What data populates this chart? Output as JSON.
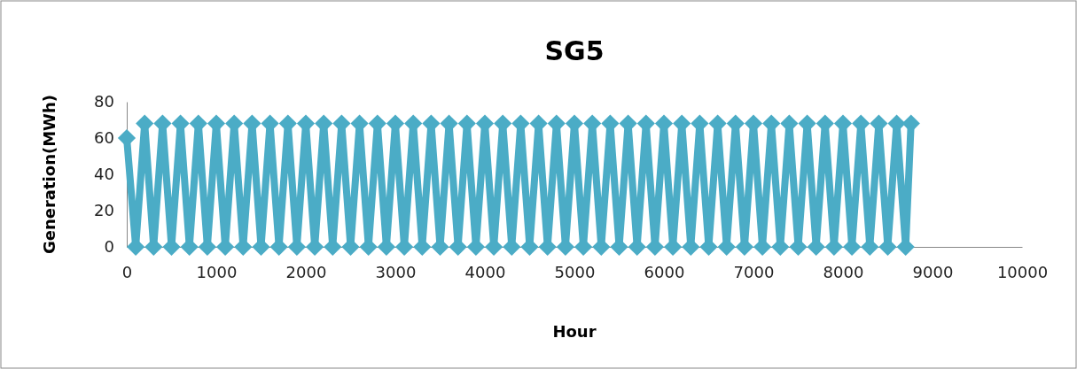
{
  "chart_data": {
    "type": "line",
    "title": "SG5",
    "xlabel": "Hour",
    "ylabel": "Generation(MWh)",
    "xlim": [
      0,
      10000
    ],
    "xticks": [
      0,
      1000,
      2000,
      3000,
      4000,
      5000,
      6000,
      7000,
      8000,
      9000,
      10000
    ],
    "ylim": [
      0,
      80
    ],
    "yticks": [
      0,
      20,
      40,
      60,
      80
    ],
    "grid": false,
    "marker": "diamond",
    "line_style": "solid",
    "series": [
      {
        "color": "#4bacc6",
        "x": [
          0,
          100,
          200,
          300,
          400,
          500,
          600,
          700,
          800,
          900,
          1000,
          1100,
          1200,
          1300,
          1400,
          1500,
          1600,
          1700,
          1800,
          1900,
          2000,
          2100,
          2200,
          2300,
          2400,
          2500,
          2600,
          2700,
          2800,
          2900,
          3000,
          3100,
          3200,
          3300,
          3400,
          3500,
          3600,
          3700,
          3800,
          3900,
          4000,
          4100,
          4200,
          4300,
          4400,
          4500,
          4600,
          4700,
          4800,
          4900,
          5000,
          5100,
          5200,
          5300,
          5400,
          5500,
          5600,
          5700,
          5800,
          5900,
          6000,
          6100,
          6200,
          6300,
          6400,
          6500,
          6600,
          6700,
          6800,
          6900,
          7000,
          7100,
          7200,
          7300,
          7400,
          7500,
          7600,
          7700,
          7800,
          7900,
          8000,
          8100,
          8200,
          8300,
          8400,
          8500,
          8600,
          8700,
          8760
        ],
        "values": [
          60,
          0,
          68,
          0,
          68,
          0,
          68,
          0,
          68,
          0,
          68,
          0,
          68,
          0,
          68,
          0,
          68,
          0,
          68,
          0,
          68,
          0,
          68,
          0,
          68,
          0,
          68,
          0,
          68,
          0,
          68,
          0,
          68,
          0,
          68,
          0,
          68,
          0,
          68,
          0,
          68,
          0,
          68,
          0,
          68,
          0,
          68,
          0,
          68,
          0,
          68,
          0,
          68,
          0,
          68,
          0,
          68,
          0,
          68,
          0,
          68,
          0,
          68,
          0,
          68,
          0,
          68,
          0,
          68,
          0,
          68,
          0,
          68,
          0,
          68,
          0,
          68,
          0,
          68,
          0,
          68,
          0,
          68,
          0,
          68,
          0,
          68,
          0,
          68
        ]
      }
    ]
  }
}
